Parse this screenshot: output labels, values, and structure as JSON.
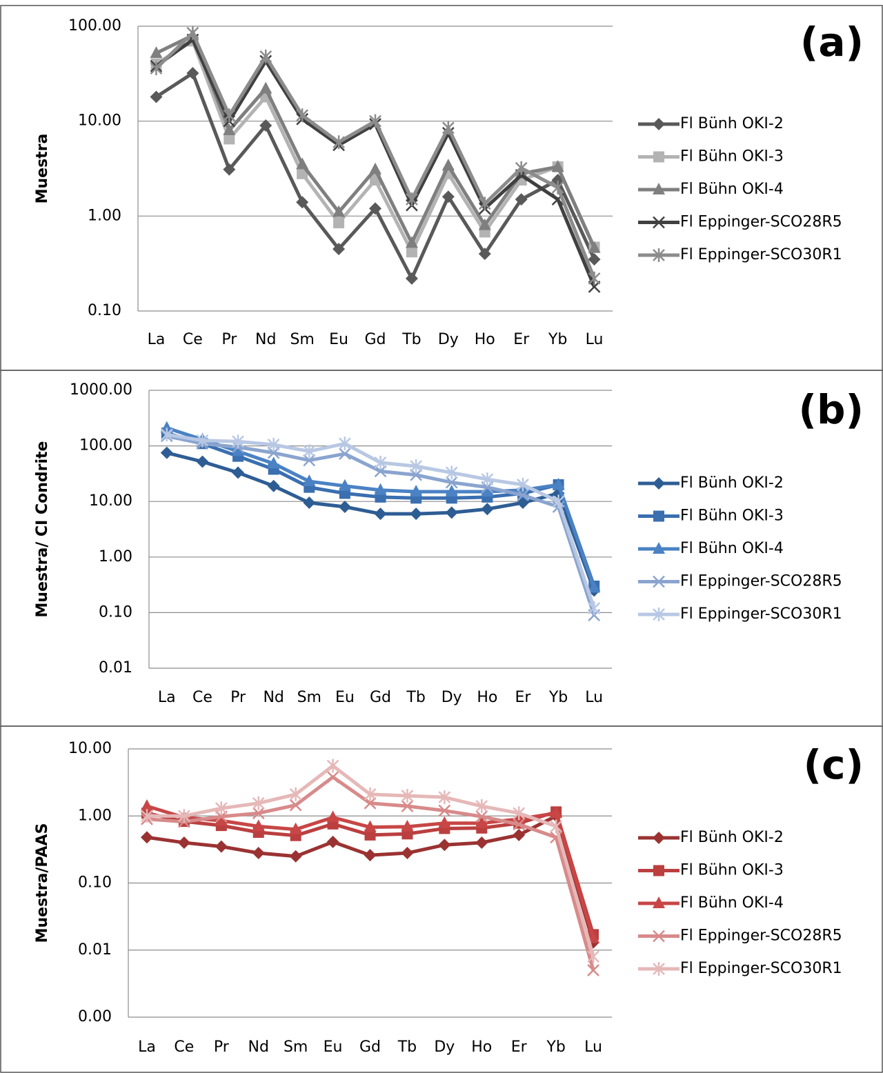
{
  "chart_data": [
    {
      "type": "line",
      "annotation": "(a)",
      "ylabel": "Muestra",
      "log_scale": true,
      "grid": true,
      "legend": "right",
      "categories": [
        "La",
        "Ce",
        "Pr",
        "Nd",
        "Sm",
        "Eu",
        "Gd",
        "Tb",
        "Dy",
        "Ho",
        "Er",
        "Yb",
        "Lu"
      ],
      "ylim": [
        0.1,
        100
      ],
      "yticks": [
        {
          "value": 100,
          "label": "100.00"
        },
        {
          "value": 10,
          "label": "10.00"
        },
        {
          "value": 1,
          "label": "1.00"
        },
        {
          "value": 0.1,
          "label": "0.10"
        }
      ],
      "series": [
        {
          "name": "Fl Bünh OKI-2",
          "color": "#595959",
          "marker": "diamond",
          "values": [
            18,
            32,
            3.1,
            9,
            1.4,
            0.45,
            1.2,
            0.22,
            1.6,
            0.4,
            1.5,
            2.4,
            0.35
          ]
        },
        {
          "name": "Fl Bühn OKI-3",
          "color": "#b3b3b3",
          "marker": "square",
          "values": [
            40,
            70,
            6.5,
            18,
            2.8,
            0.85,
            2.4,
            0.42,
            2.8,
            0.68,
            2.4,
            3.3,
            0.47
          ]
        },
        {
          "name": "Fl Bühn OKI-4",
          "color": "#7f7f7f",
          "marker": "triangle",
          "values": [
            52,
            80,
            8,
            22,
            3.5,
            1.1,
            3.1,
            0.52,
            3.4,
            0.8,
            2.8,
            3.3,
            0.46
          ]
        },
        {
          "name": "Fl Eppinger-SCO28R5",
          "color": "#404040",
          "marker": "x",
          "values": [
            38,
            72,
            10,
            43,
            10.5,
            5.6,
            9.3,
            1.3,
            7.5,
            1.2,
            2.7,
            1.5,
            0.18
          ]
        },
        {
          "name": "Fl Eppinger-SCO30R1",
          "color": "#8c8c8c",
          "marker": "star",
          "values": [
            36,
            85,
            11.5,
            48,
            11.5,
            6,
            10,
            1.5,
            8.5,
            1.35,
            3.2,
            2,
            0.22
          ]
        }
      ]
    },
    {
      "type": "line",
      "annotation": "(b)",
      "ylabel": "Muestra/ CI Condrite",
      "log_scale": true,
      "grid": true,
      "legend": "right",
      "categories": [
        "La",
        "Ce",
        "Pr",
        "Nd",
        "Sm",
        "Eu",
        "Gd",
        "Tb",
        "Dy",
        "Ho",
        "Er",
        "Yb",
        "Lu"
      ],
      "ylim": [
        0.01,
        1000
      ],
      "yticks": [
        {
          "value": 1000,
          "label": "1000.00"
        },
        {
          "value": 100,
          "label": "100.00"
        },
        {
          "value": 10,
          "label": "10.00"
        },
        {
          "value": 1,
          "label": "1.00"
        },
        {
          "value": 0.1,
          "label": "0.10"
        },
        {
          "value": 0.01,
          "label": "0.01"
        }
      ],
      "series": [
        {
          "name": "Fl Bünh OKI-2",
          "color": "#2e5d94",
          "marker": "diamond",
          "values": [
            75,
            52,
            33,
            19,
            9.5,
            8,
            6,
            6,
            6.3,
            7.3,
            9.5,
            14,
            0.25
          ]
        },
        {
          "name": "Fl Bühn OKI-3",
          "color": "#3a6fb0",
          "marker": "square",
          "values": [
            170,
            110,
            65,
            38,
            18,
            14,
            12,
            11.5,
            11.5,
            12,
            14,
            20,
            0.3
          ]
        },
        {
          "name": "Fl Bühn OKI-4",
          "color": "#4a82c4",
          "marker": "triangle",
          "values": [
            210,
            130,
            80,
            48,
            23,
            19,
            16,
            15,
            15,
            15,
            16,
            20,
            0.28
          ]
        },
        {
          "name": "Fl Eppinger-SCO28R5",
          "color": "#8aa4cf",
          "marker": "x",
          "values": [
            150,
            110,
            95,
            75,
            55,
            72,
            35,
            30,
            22,
            18,
            13,
            8,
            0.09
          ]
        },
        {
          "name": "Fl Eppinger-SCO30R1",
          "color": "#b8c8e4",
          "marker": "star",
          "values": [
            160,
            125,
            120,
            105,
            80,
            110,
            50,
            43,
            33,
            25,
            20,
            10,
            0.12
          ]
        }
      ]
    },
    {
      "type": "line",
      "annotation": "(c)",
      "ylabel": "Muestra/PAAS",
      "log_scale": true,
      "grid": true,
      "legend": "right",
      "categories": [
        "La",
        "Ce",
        "Pr",
        "Nd",
        "Sm",
        "Eu",
        "Gd",
        "Tb",
        "Dy",
        "Ho",
        "Er",
        "Yb",
        "Lu"
      ],
      "ylim": [
        0.001,
        10
      ],
      "yticks": [
        {
          "value": 10,
          "label": "10.00"
        },
        {
          "value": 1,
          "label": "1.00"
        },
        {
          "value": 0.1,
          "label": "0.10"
        },
        {
          "value": 0.01,
          "label": "0.01"
        },
        {
          "value": 0.001,
          "label": "0.00"
        }
      ],
      "series": [
        {
          "name": "Fl Bünh OKI-2",
          "color": "#9b3232",
          "marker": "diamond",
          "values": [
            0.48,
            0.4,
            0.35,
            0.28,
            0.25,
            0.41,
            0.26,
            0.28,
            0.37,
            0.4,
            0.52,
            1.0,
            0.013
          ]
        },
        {
          "name": "Fl Bühn OKI-3",
          "color": "#bb3f3f",
          "marker": "square",
          "values": [
            1.1,
            0.83,
            0.72,
            0.57,
            0.51,
            0.76,
            0.52,
            0.54,
            0.65,
            0.66,
            0.78,
            1.15,
            0.017
          ]
        },
        {
          "name": "Fl Bühn OKI-4",
          "color": "#c84646",
          "marker": "triangle",
          "values": [
            1.4,
            0.95,
            0.85,
            0.7,
            0.63,
            0.95,
            0.68,
            0.69,
            0.78,
            0.78,
            0.9,
            1.1,
            0.015
          ]
        },
        {
          "name": "Fl Eppinger-SCO28R5",
          "color": "#d88a8a",
          "marker": "x",
          "values": [
            0.9,
            0.82,
            0.98,
            1.1,
            1.45,
            3.8,
            1.55,
            1.4,
            1.2,
            0.98,
            0.75,
            0.48,
            0.005
          ]
        },
        {
          "name": "Fl Eppinger-SCO30R1",
          "color": "#e6b8b8",
          "marker": "star",
          "values": [
            1.0,
            1.0,
            1.3,
            1.55,
            2.1,
            5.6,
            2.1,
            2.0,
            1.9,
            1.4,
            1.1,
            0.7,
            0.008
          ]
        }
      ]
    }
  ]
}
